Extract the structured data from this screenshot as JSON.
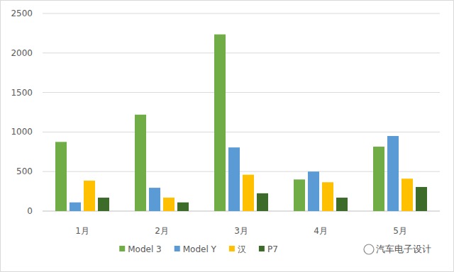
{
  "chart_data": {
    "type": "bar",
    "categories": [
      "1月",
      "2月",
      "3月",
      "4月",
      "5月"
    ],
    "series": [
      {
        "name": "Model 3",
        "color": "#70ad47",
        "values": [
          875,
          1220,
          2235,
          400,
          815
        ]
      },
      {
        "name": "Model Y",
        "color": "#5b9bd5",
        "values": [
          110,
          295,
          805,
          500,
          950
        ]
      },
      {
        "name": "汉",
        "color": "#ffc000",
        "values": [
          385,
          170,
          460,
          365,
          410
        ]
      },
      {
        "name": "P7",
        "color": "#3d6b2a",
        "values": [
          170,
          110,
          225,
          170,
          305
        ]
      }
    ],
    "ylim": [
      0,
      2500
    ],
    "yticks": [
      0,
      500,
      1000,
      1500,
      2000,
      2500
    ],
    "grid": true,
    "legend": "bottom",
    "annotations": [
      "汽车电子设计"
    ]
  }
}
